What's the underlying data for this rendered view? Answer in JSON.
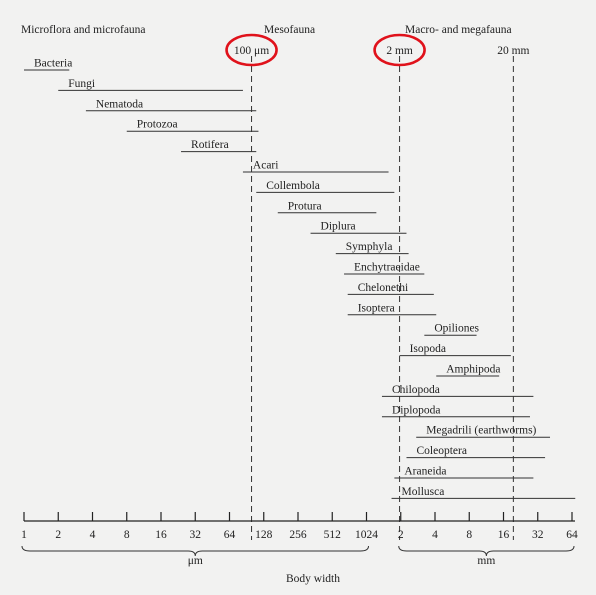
{
  "chart_data": {
    "type": "bar",
    "orientation": "horizontal",
    "title": "",
    "xlabel": "Body width",
    "scale": "log2",
    "x_ticks": [
      {
        "label": "1",
        "um": 1
      },
      {
        "label": "2",
        "um": 2
      },
      {
        "label": "4",
        "um": 4
      },
      {
        "label": "8",
        "um": 8
      },
      {
        "label": "16",
        "um": 16
      },
      {
        "label": "32",
        "um": 32
      },
      {
        "label": "64",
        "um": 64
      },
      {
        "label": "128",
        "um": 128
      },
      {
        "label": "256",
        "um": 256
      },
      {
        "label": "512",
        "um": 512
      },
      {
        "label": "1024",
        "um": 1024
      },
      {
        "label": "2",
        "um": 2048
      },
      {
        "label": "4",
        "um": 4096
      },
      {
        "label": "8",
        "um": 8192
      },
      {
        "label": "16",
        "um": 16384
      },
      {
        "label": "32",
        "um": 32768
      },
      {
        "label": "64",
        "um": 65536
      }
    ],
    "unit_groups": [
      {
        "label": "μm",
        "from_um": 1,
        "to_um": 1024
      },
      {
        "label": "mm",
        "from_um": 2048,
        "to_um": 65536
      }
    ],
    "size_classes": [
      {
        "label": "Microflora and microfauna",
        "from_um": 1
      },
      {
        "label": "Mesofauna",
        "from_um": 100
      },
      {
        "label": "Macro- and megafauna",
        "from_um": 2000
      }
    ],
    "reference_lines": [
      {
        "label": "100 μm",
        "um": 100,
        "circled": true
      },
      {
        "label": "2 mm",
        "um": 2000,
        "circled": true
      },
      {
        "label": "20 mm",
        "um": 20000,
        "circled": false
      }
    ],
    "circle_color": "#e0121b",
    "series": [
      {
        "name": "Bacteria",
        "min_um": 1,
        "max_um": 2.5
      },
      {
        "name": "Fungi",
        "min_um": 2,
        "max_um": 84
      },
      {
        "name": "Nematoda",
        "min_um": 3.5,
        "max_um": 110
      },
      {
        "name": "Protozoa",
        "min_um": 8,
        "max_um": 115
      },
      {
        "name": "Rotifera",
        "min_um": 24,
        "max_um": 110
      },
      {
        "name": "Acari",
        "min_um": 84,
        "max_um": 1600
      },
      {
        "name": "Collembola",
        "min_um": 110,
        "max_um": 1800
      },
      {
        "name": "Protura",
        "min_um": 170,
        "max_um": 1250
      },
      {
        "name": "Diplura",
        "min_um": 330,
        "max_um": 2300
      },
      {
        "name": "Symphyla",
        "min_um": 550,
        "max_um": 2400
      },
      {
        "name": "Enchytraeidae",
        "min_um": 650,
        "max_um": 3300
      },
      {
        "name": "Chelonethi",
        "min_um": 700,
        "max_um": 4000
      },
      {
        "name": "Isoptera",
        "min_um": 700,
        "max_um": 4200
      },
      {
        "name": "Opiliones",
        "min_um": 3300,
        "max_um": 9500
      },
      {
        "name": "Isopoda",
        "min_um": 2000,
        "max_um": 19000
      },
      {
        "name": "Amphipoda",
        "min_um": 4200,
        "max_um": 15000
      },
      {
        "name": "Chilopoda",
        "min_um": 1400,
        "max_um": 30000
      },
      {
        "name": "Diplopoda",
        "min_um": 1400,
        "max_um": 28000
      },
      {
        "name": "Megadrili (earthworms)",
        "min_um": 2800,
        "max_um": 42000
      },
      {
        "name": "Coleoptera",
        "min_um": 2300,
        "max_um": 38000
      },
      {
        "name": "Araneida",
        "min_um": 1800,
        "max_um": 30000
      },
      {
        "name": "Mollusca",
        "min_um": 1700,
        "max_um": 70000
      }
    ]
  }
}
